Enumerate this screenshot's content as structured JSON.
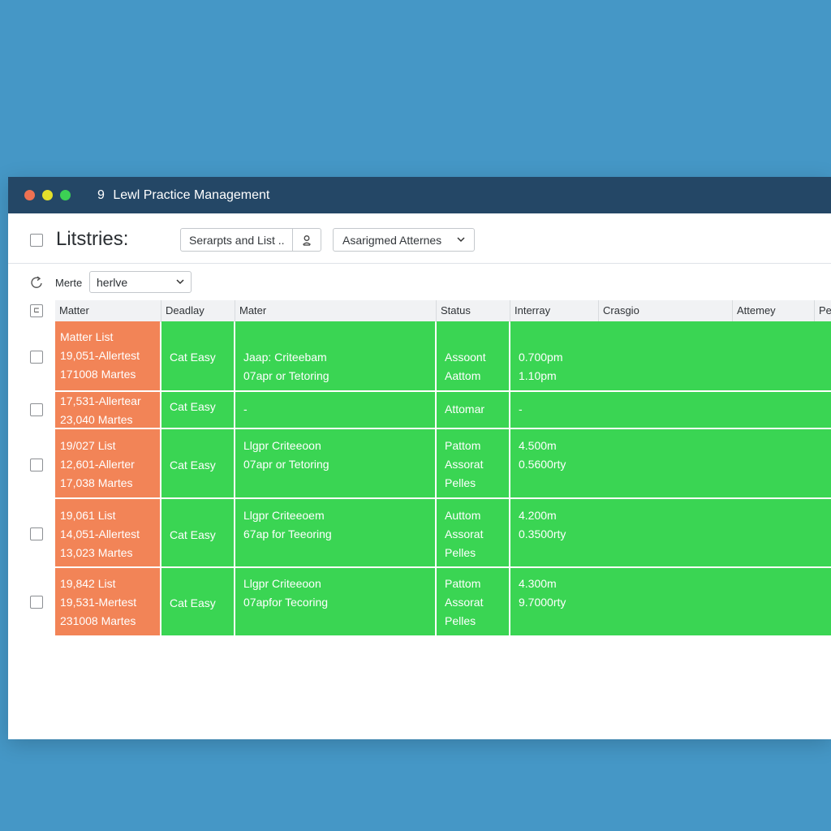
{
  "window": {
    "title_number": "9",
    "title": "Lewl Practice Management"
  },
  "toolbar": {
    "page_title": "Litstries:",
    "search_text": "Serarpts and List ..",
    "search_icon": "person-search-icon",
    "assigned_label": "Asarigmed Atternes"
  },
  "filter": {
    "label": "Merte",
    "value": "herlve"
  },
  "table": {
    "columns": [
      "Matter",
      "Deadlay",
      "Mater",
      "Status",
      "Interray",
      "Crasgio",
      "Attemey",
      "Pe"
    ],
    "rows": [
      {
        "matter": [
          "Matter List",
          "19,051-Allertest",
          "171008 Martes"
        ],
        "deadline": [
          "Cat Easy"
        ],
        "mater": [
          "Jaap: Criteebam",
          "07apr or Tetoring"
        ],
        "status": [
          "Assoont",
          "Aattom"
        ],
        "interray": [
          "0.700pm",
          "1.10pm"
        ]
      },
      {
        "matter": [
          "17,531-Allertear",
          "23,040 Martes"
        ],
        "deadline": [
          "Cat Easy"
        ],
        "mater": [
          "-"
        ],
        "status": [
          "Attomar"
        ],
        "interray": [
          "-"
        ]
      },
      {
        "matter": [
          "19/027 List",
          "12,601-Allerter",
          "17,038 Martes"
        ],
        "deadline": [
          "Cat Easy"
        ],
        "mater": [
          "Llgpr Criteeoon",
          "07apr or Tetoring"
        ],
        "status": [
          "Pattom",
          "Assorat",
          "Pelles"
        ],
        "interray": [
          "4.500m",
          "0.5600rty"
        ]
      },
      {
        "matter": [
          "19,061 List",
          "14,051-Allertest",
          "13,023 Martes"
        ],
        "deadline": [
          "Cat Easy"
        ],
        "mater": [
          "Llgpr Criteeoem",
          "67ap for Teeoring"
        ],
        "status": [
          "Auttom",
          "Assorat",
          "Pelles"
        ],
        "interray": [
          "4.200m",
          "0.3500rty"
        ]
      },
      {
        "matter": [
          "19,842 List",
          "19,531-Mertest",
          "231008 Martes"
        ],
        "deadline": [
          "Cat Easy"
        ],
        "mater": [
          "Llgpr Criteeoon",
          "07apfor Tecoring"
        ],
        "status": [
          "Pattom",
          "Assorat",
          "Pelles"
        ],
        "interray": [
          "4.300m",
          "9.7000rty"
        ]
      }
    ]
  },
  "colors": {
    "desktop": "#4597c6",
    "titlebar": "#244766",
    "matter_cell": "#f28457",
    "row_fill": "#3ad553"
  }
}
